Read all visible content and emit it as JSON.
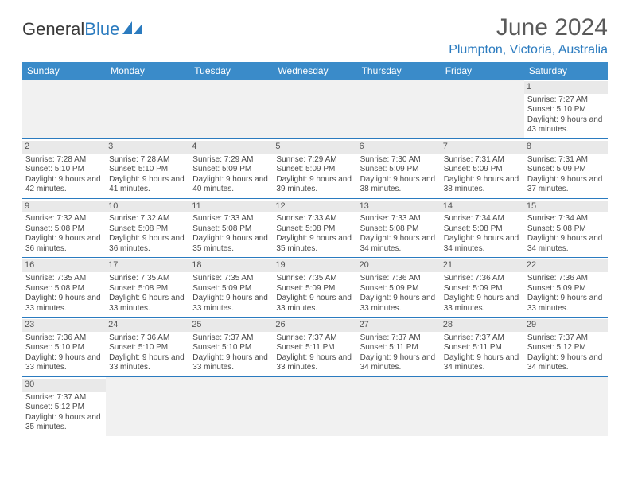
{
  "logo": {
    "word1": "General",
    "word2": "Blue",
    "sail_color": "#2b7bbf"
  },
  "title": "June 2024",
  "location": "Plumpton, Victoria, Australia",
  "colors": {
    "header_bg": "#3a8bc9",
    "header_text": "#ffffff",
    "accent": "#2b7bbf",
    "daynum_bg": "#e9e9e9",
    "empty_bg": "#f1f1f1",
    "text": "#3a3a3a"
  },
  "day_headers": [
    "Sunday",
    "Monday",
    "Tuesday",
    "Wednesday",
    "Thursday",
    "Friday",
    "Saturday"
  ],
  "weeks": [
    [
      null,
      null,
      null,
      null,
      null,
      null,
      {
        "n": "1",
        "sunrise": "7:27 AM",
        "sunset": "5:10 PM",
        "daylight": "9 hours and 43 minutes."
      }
    ],
    [
      {
        "n": "2",
        "sunrise": "7:28 AM",
        "sunset": "5:10 PM",
        "daylight": "9 hours and 42 minutes."
      },
      {
        "n": "3",
        "sunrise": "7:28 AM",
        "sunset": "5:10 PM",
        "daylight": "9 hours and 41 minutes."
      },
      {
        "n": "4",
        "sunrise": "7:29 AM",
        "sunset": "5:09 PM",
        "daylight": "9 hours and 40 minutes."
      },
      {
        "n": "5",
        "sunrise": "7:29 AM",
        "sunset": "5:09 PM",
        "daylight": "9 hours and 39 minutes."
      },
      {
        "n": "6",
        "sunrise": "7:30 AM",
        "sunset": "5:09 PM",
        "daylight": "9 hours and 38 minutes."
      },
      {
        "n": "7",
        "sunrise": "7:31 AM",
        "sunset": "5:09 PM",
        "daylight": "9 hours and 38 minutes."
      },
      {
        "n": "8",
        "sunrise": "7:31 AM",
        "sunset": "5:09 PM",
        "daylight": "9 hours and 37 minutes."
      }
    ],
    [
      {
        "n": "9",
        "sunrise": "7:32 AM",
        "sunset": "5:08 PM",
        "daylight": "9 hours and 36 minutes."
      },
      {
        "n": "10",
        "sunrise": "7:32 AM",
        "sunset": "5:08 PM",
        "daylight": "9 hours and 36 minutes."
      },
      {
        "n": "11",
        "sunrise": "7:33 AM",
        "sunset": "5:08 PM",
        "daylight": "9 hours and 35 minutes."
      },
      {
        "n": "12",
        "sunrise": "7:33 AM",
        "sunset": "5:08 PM",
        "daylight": "9 hours and 35 minutes."
      },
      {
        "n": "13",
        "sunrise": "7:33 AM",
        "sunset": "5:08 PM",
        "daylight": "9 hours and 34 minutes."
      },
      {
        "n": "14",
        "sunrise": "7:34 AM",
        "sunset": "5:08 PM",
        "daylight": "9 hours and 34 minutes."
      },
      {
        "n": "15",
        "sunrise": "7:34 AM",
        "sunset": "5:08 PM",
        "daylight": "9 hours and 34 minutes."
      }
    ],
    [
      {
        "n": "16",
        "sunrise": "7:35 AM",
        "sunset": "5:08 PM",
        "daylight": "9 hours and 33 minutes."
      },
      {
        "n": "17",
        "sunrise": "7:35 AM",
        "sunset": "5:08 PM",
        "daylight": "9 hours and 33 minutes."
      },
      {
        "n": "18",
        "sunrise": "7:35 AM",
        "sunset": "5:09 PM",
        "daylight": "9 hours and 33 minutes."
      },
      {
        "n": "19",
        "sunrise": "7:35 AM",
        "sunset": "5:09 PM",
        "daylight": "9 hours and 33 minutes."
      },
      {
        "n": "20",
        "sunrise": "7:36 AM",
        "sunset": "5:09 PM",
        "daylight": "9 hours and 33 minutes."
      },
      {
        "n": "21",
        "sunrise": "7:36 AM",
        "sunset": "5:09 PM",
        "daylight": "9 hours and 33 minutes."
      },
      {
        "n": "22",
        "sunrise": "7:36 AM",
        "sunset": "5:09 PM",
        "daylight": "9 hours and 33 minutes."
      }
    ],
    [
      {
        "n": "23",
        "sunrise": "7:36 AM",
        "sunset": "5:10 PM",
        "daylight": "9 hours and 33 minutes."
      },
      {
        "n": "24",
        "sunrise": "7:36 AM",
        "sunset": "5:10 PM",
        "daylight": "9 hours and 33 minutes."
      },
      {
        "n": "25",
        "sunrise": "7:37 AM",
        "sunset": "5:10 PM",
        "daylight": "9 hours and 33 minutes."
      },
      {
        "n": "26",
        "sunrise": "7:37 AM",
        "sunset": "5:11 PM",
        "daylight": "9 hours and 33 minutes."
      },
      {
        "n": "27",
        "sunrise": "7:37 AM",
        "sunset": "5:11 PM",
        "daylight": "9 hours and 34 minutes."
      },
      {
        "n": "28",
        "sunrise": "7:37 AM",
        "sunset": "5:11 PM",
        "daylight": "9 hours and 34 minutes."
      },
      {
        "n": "29",
        "sunrise": "7:37 AM",
        "sunset": "5:12 PM",
        "daylight": "9 hours and 34 minutes."
      }
    ],
    [
      {
        "n": "30",
        "sunrise": "7:37 AM",
        "sunset": "5:12 PM",
        "daylight": "9 hours and 35 minutes."
      },
      null,
      null,
      null,
      null,
      null,
      null
    ]
  ],
  "labels": {
    "sunrise": "Sunrise: ",
    "sunset": "Sunset: ",
    "daylight": "Daylight: "
  }
}
